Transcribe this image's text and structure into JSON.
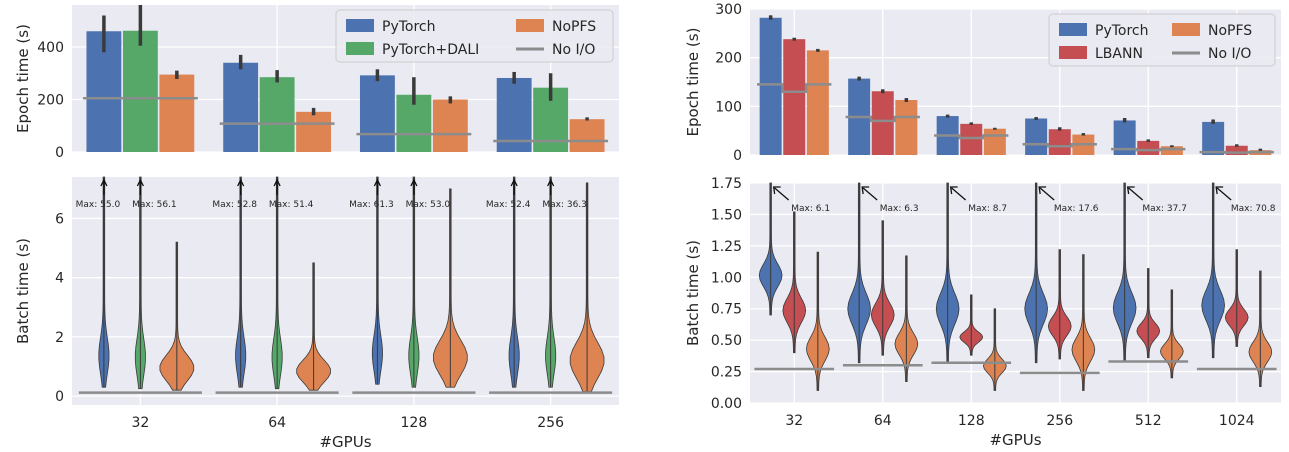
{
  "colors": {
    "PyTorch": "#4c72b0",
    "PyTorch+DALI": "#55a868",
    "NoPFS": "#dd8452",
    "LBANN": "#c44e52",
    "No I/O": "#8c8c8c",
    "panel_bg": "#eaeaf2",
    "grid": "#ffffff"
  },
  "chart_data": [
    {
      "id": "left-epoch",
      "type": "bar",
      "xlabel": "",
      "ylabel": "Epoch time (s)",
      "ylim": [
        0,
        560
      ],
      "yticks": [
        0,
        200,
        400
      ],
      "categories": [
        "32",
        "64",
        "128",
        "256"
      ],
      "series": [
        {
          "name": "PyTorch",
          "values": [
            460,
            340,
            292,
            282
          ],
          "err": [
            [
              380,
              520
            ],
            [
              315,
              370
            ],
            [
              270,
              315
            ],
            [
              260,
              305
            ]
          ]
        },
        {
          "name": "PyTorch+DALI",
          "values": [
            462,
            285,
            218,
            245
          ],
          "err": [
            [
              405,
              560
            ],
            [
              265,
              312
            ],
            [
              180,
              285
            ],
            [
              195,
              300
            ]
          ]
        },
        {
          "name": "NoPFS",
          "values": [
            295,
            153,
            200,
            125
          ],
          "err": [
            [
              278,
              310
            ],
            [
              140,
              168
            ],
            [
              185,
              212
            ],
            [
              120,
              132
            ]
          ]
        }
      ],
      "noio": [
        205,
        108,
        68,
        42
      ],
      "legend": {
        "position": "top-right",
        "entries": [
          "PyTorch",
          "PyTorch+DALI",
          "NoPFS",
          "No I/O"
        ]
      }
    },
    {
      "id": "left-batch",
      "type": "violin",
      "xlabel": "#GPUs",
      "ylabel": "Batch time (s)",
      "ylim": [
        -0.3,
        7.4
      ],
      "yticks": [
        0,
        2,
        4,
        6
      ],
      "categories": [
        "32",
        "64",
        "128",
        "256"
      ],
      "series": [
        {
          "name": "PyTorch",
          "ranges": [
            [
              0.3,
              7.4
            ],
            [
              0.3,
              7.4
            ],
            [
              0.4,
              7.4
            ],
            [
              0.3,
              7.4
            ]
          ]
        },
        {
          "name": "PyTorch+DALI",
          "ranges": [
            [
              0.25,
              7.4
            ],
            [
              0.25,
              7.4
            ],
            [
              0.3,
              7.4
            ],
            [
              0.3,
              7.4
            ]
          ]
        },
        {
          "name": "NoPFS",
          "ranges": [
            [
              0.2,
              5.2
            ],
            [
              0.2,
              4.5
            ],
            [
              0.3,
              7.0
            ],
            [
              0.15,
              7.2
            ]
          ]
        }
      ],
      "noio": [
        0.12,
        0.12,
        0.12,
        0.12
      ],
      "annotations": [
        [
          "Max: 55.0",
          "Max: 56.1"
        ],
        [
          "Max: 52.8",
          "Max: 51.4"
        ],
        [
          "Max: 61.3",
          "Max: 53.0"
        ],
        [
          "Max: 52.4",
          "Max: 36.3"
        ]
      ]
    },
    {
      "id": "right-epoch",
      "type": "bar",
      "xlabel": "",
      "ylabel": "Epoch time (s)",
      "ylim": [
        0,
        300
      ],
      "yticks": [
        0,
        100,
        200,
        300
      ],
      "categories": [
        "32",
        "64",
        "128",
        "256",
        "512",
        "1024"
      ],
      "series": [
        {
          "name": "PyTorch",
          "values": [
            282,
            157,
            80,
            75,
            71,
            68
          ],
          "err": [
            [
              278,
              287
            ],
            [
              153,
              161
            ],
            [
              77,
              83
            ],
            [
              72,
              78
            ],
            [
              67,
              76
            ],
            [
              64,
              73
            ]
          ]
        },
        {
          "name": "LBANN",
          "values": [
            238,
            131,
            64,
            53,
            29,
            19
          ],
          "err": [
            [
              235,
              241
            ],
            [
              127,
              135
            ],
            [
              62,
              67
            ],
            [
              50,
              57
            ],
            [
              27,
              32
            ],
            [
              17,
              22
            ]
          ]
        },
        {
          "name": "NoPFS",
          "values": [
            215,
            113,
            54,
            42,
            18,
            10
          ],
          "err": [
            [
              212,
              218
            ],
            [
              109,
              117
            ],
            [
              52,
              56
            ],
            [
              40,
              45
            ],
            [
              16,
              20
            ],
            [
              7,
              13
            ]
          ]
        }
      ],
      "noio": [
        145,
        78,
        40,
        22,
        12,
        6
      ],
      "noio_dip": [
        130,
        70,
        35,
        18,
        10,
        5
      ],
      "legend": {
        "position": "top-right",
        "entries": [
          "PyTorch",
          "LBANN",
          "NoPFS",
          "No I/O"
        ]
      }
    },
    {
      "id": "right-batch",
      "type": "violin",
      "xlabel": "#GPUs",
      "ylabel": "Batch time (s)",
      "ylim": [
        0,
        1.75
      ],
      "yticks": [
        0.0,
        0.25,
        0.5,
        0.75,
        1.0,
        1.25,
        1.5,
        1.75
      ],
      "categories": [
        "32",
        "64",
        "128",
        "256",
        "512",
        "1024"
      ],
      "series": [
        {
          "name": "PyTorch",
          "ranges": [
            [
              0.7,
              1.75
            ],
            [
              0.32,
              1.75
            ],
            [
              0.32,
              1.75
            ],
            [
              0.32,
              1.75
            ],
            [
              0.33,
              1.75
            ],
            [
              0.36,
              1.75
            ]
          ]
        },
        {
          "name": "LBANN",
          "ranges": [
            [
              0.4,
              1.52
            ],
            [
              0.38,
              1.45
            ],
            [
              0.38,
              0.86
            ],
            [
              0.35,
              1.22
            ],
            [
              0.36,
              1.07
            ],
            [
              0.45,
              1.22
            ]
          ]
        },
        {
          "name": "NoPFS",
          "ranges": [
            [
              0.1,
              1.2
            ],
            [
              0.17,
              1.17
            ],
            [
              0.1,
              0.75
            ],
            [
              0.1,
              1.18
            ],
            [
              0.2,
              0.9
            ],
            [
              0.13,
              1.05
            ]
          ]
        }
      ],
      "noio": [
        0.27,
        0.3,
        0.32,
        0.24,
        0.33,
        0.27
      ],
      "annotations": [
        "Max: 6.1",
        "Max: 6.3",
        "Max: 8.7",
        "Max: 17.6",
        "Max: 37.7",
        "Max: 70.8"
      ]
    }
  ]
}
